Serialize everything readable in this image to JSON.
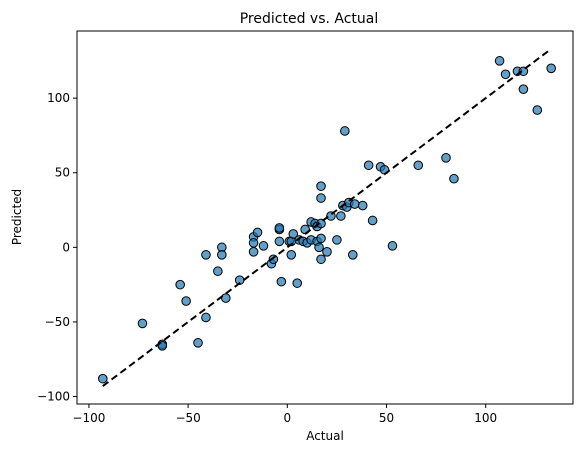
{
  "chart_data": {
    "type": "scatter",
    "title": "Predicted vs. Actual",
    "xlabel": "Actual",
    "ylabel": "Predicted",
    "xlim": [
      -106,
      144
    ],
    "ylim": [
      -105,
      145
    ],
    "xticks": [
      -100,
      -50,
      0,
      50,
      100
    ],
    "yticks": [
      -100,
      -50,
      0,
      50,
      100
    ],
    "xtick_labels": [
      "−100",
      "−50",
      "0",
      "50",
      "100"
    ],
    "ytick_labels": [
      "−100",
      "−50",
      "0",
      "50",
      "100"
    ],
    "grid": false,
    "reference_line": {
      "style": "dashed",
      "color": "#000000",
      "from": [
        -93,
        -93
      ],
      "to": [
        133,
        133
      ]
    },
    "marker": {
      "fill": "#1f77b4",
      "opacity": 0.7,
      "edge": "#000000"
    },
    "points": [
      [
        -93,
        -88
      ],
      [
        -73,
        -51
      ],
      [
        -63,
        -65
      ],
      [
        -63,
        -66
      ],
      [
        -54,
        -25
      ],
      [
        -51,
        -36
      ],
      [
        -45,
        -64
      ],
      [
        -41,
        -47
      ],
      [
        -41,
        -5
      ],
      [
        -35,
        -16
      ],
      [
        -33,
        0
      ],
      [
        -33,
        -5
      ],
      [
        -31,
        -34
      ],
      [
        -24,
        -22
      ],
      [
        -17,
        7
      ],
      [
        -17,
        3
      ],
      [
        -17,
        -3
      ],
      [
        -15,
        10
      ],
      [
        -12,
        1
      ],
      [
        -8,
        -11
      ],
      [
        -7,
        -8
      ],
      [
        -4,
        12
      ],
      [
        -4,
        13
      ],
      [
        -4,
        4
      ],
      [
        -3,
        -23
      ],
      [
        1,
        4
      ],
      [
        2,
        4
      ],
      [
        2,
        -5
      ],
      [
        3,
        9
      ],
      [
        5,
        -24
      ],
      [
        6,
        5
      ],
      [
        8,
        4
      ],
      [
        9,
        12
      ],
      [
        10,
        3
      ],
      [
        12,
        5
      ],
      [
        12,
        17
      ],
      [
        14,
        16
      ],
      [
        15,
        14
      ],
      [
        15,
        4
      ],
      [
        16,
        0
      ],
      [
        17,
        41
      ],
      [
        17,
        33
      ],
      [
        17,
        16
      ],
      [
        17,
        6
      ],
      [
        17,
        -8
      ],
      [
        20,
        -3
      ],
      [
        22,
        21
      ],
      [
        25,
        5
      ],
      [
        27,
        21
      ],
      [
        28,
        28
      ],
      [
        29,
        78
      ],
      [
        30,
        27
      ],
      [
        31,
        30
      ],
      [
        33,
        -5
      ],
      [
        34,
        29
      ],
      [
        38,
        28
      ],
      [
        41,
        55
      ],
      [
        43,
        18
      ],
      [
        47,
        54
      ],
      [
        49,
        52
      ],
      [
        53,
        1
      ],
      [
        66,
        55
      ],
      [
        80,
        60
      ],
      [
        84,
        46
      ],
      [
        107,
        125
      ],
      [
        110,
        116
      ],
      [
        116,
        118
      ],
      [
        119,
        118
      ],
      [
        119,
        106
      ],
      [
        126,
        92
      ],
      [
        133,
        120
      ]
    ]
  }
}
